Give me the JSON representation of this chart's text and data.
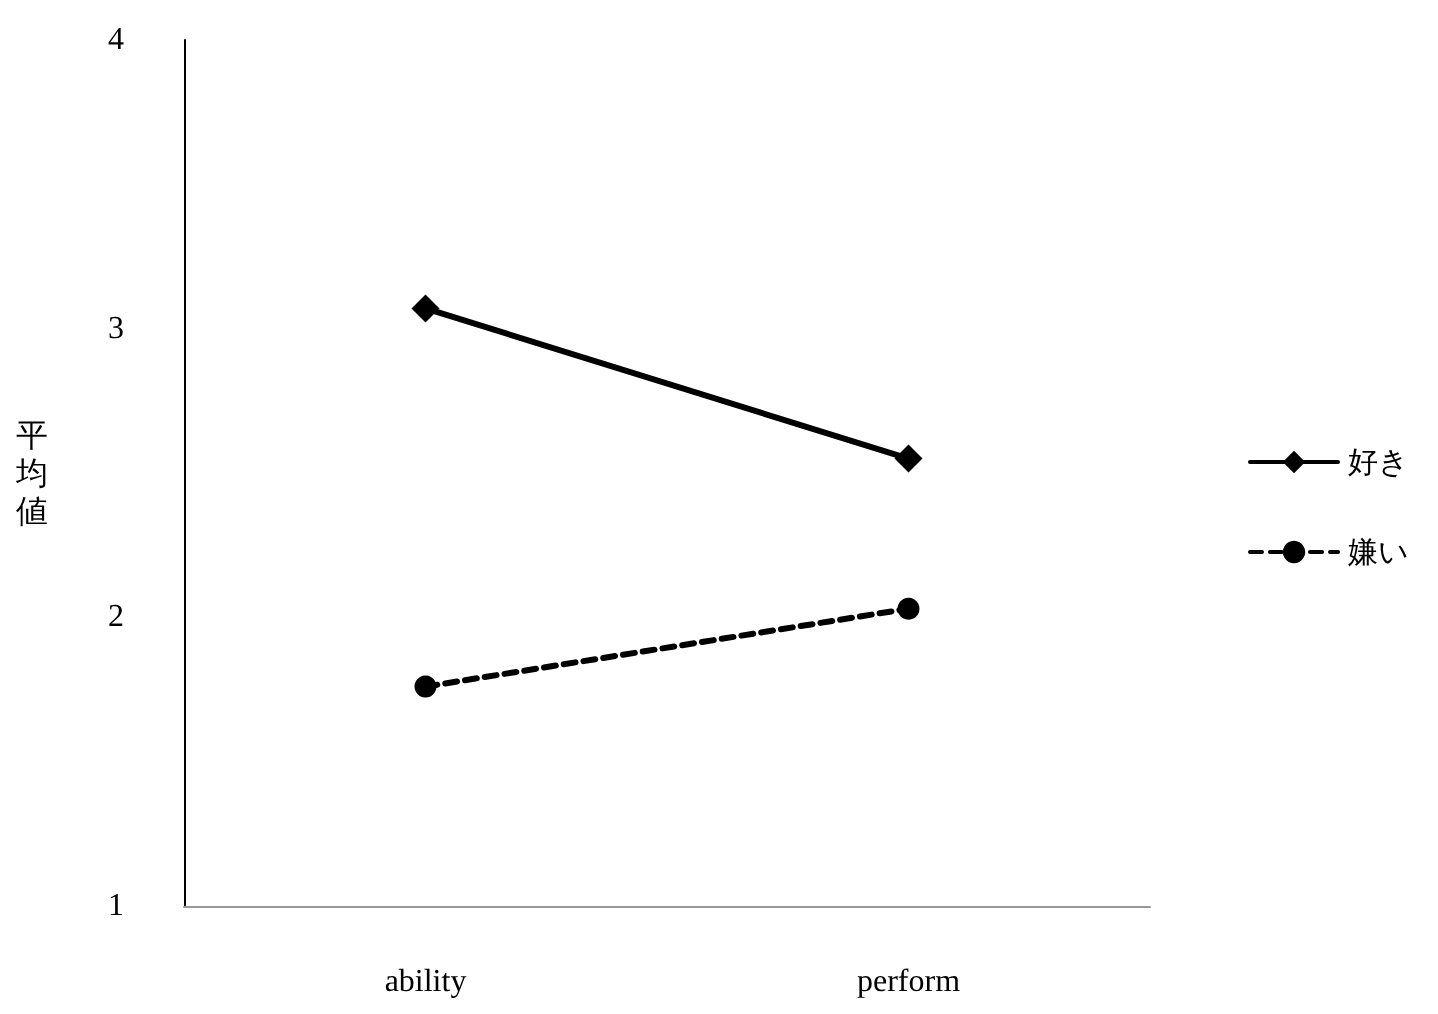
{
  "chart_data": {
    "type": "line",
    "ylabel": "平均値",
    "categories": [
      "ability",
      "perform"
    ],
    "series": [
      {
        "name": "好き",
        "color": "#000000",
        "values": [
          3.07,
          2.55
        ],
        "marker": "diamond",
        "line_style": "solid"
      },
      {
        "name": "嫌い",
        "color": "#000000",
        "values": [
          1.76,
          2.03
        ],
        "marker": "circle",
        "line_style": "dashed"
      }
    ],
    "ylim": [
      1,
      4
    ],
    "yticks": [
      1,
      2,
      3,
      4
    ],
    "grid": false,
    "legend": "right"
  }
}
